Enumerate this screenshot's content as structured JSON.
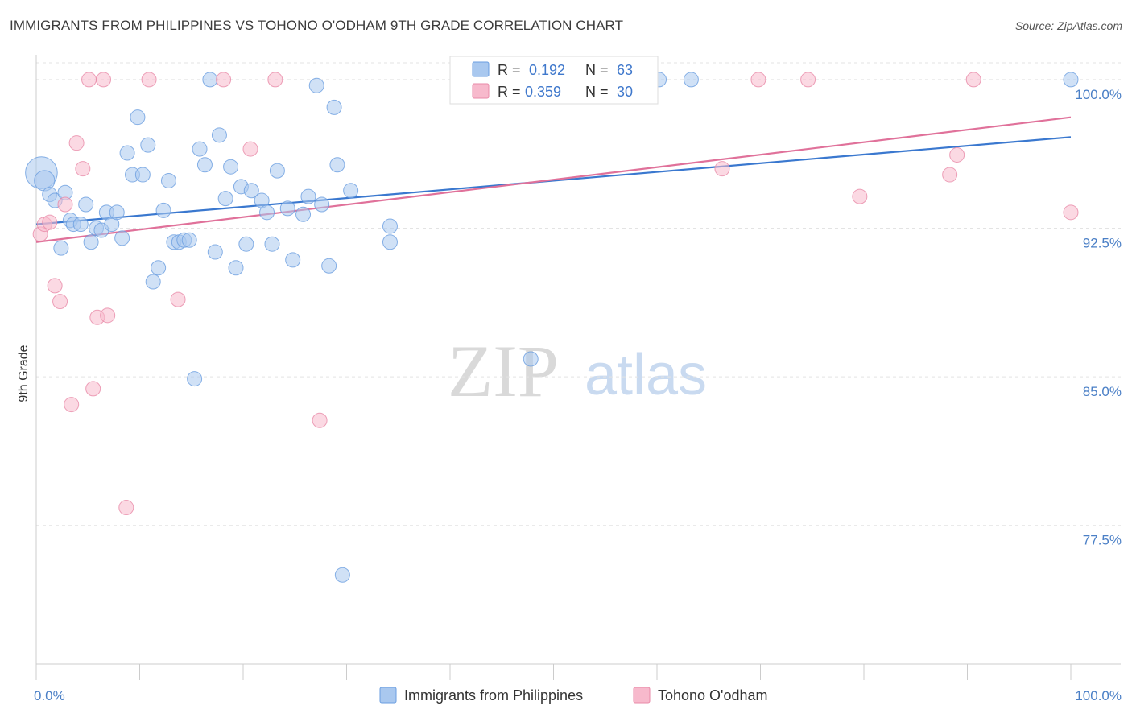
{
  "title": "IMMIGRANTS FROM PHILIPPINES VS TOHONO O'ODHAM 9TH GRADE CORRELATION CHART",
  "source": "Source: ZipAtlas.com",
  "watermark": {
    "zip": "ZIP",
    "atlas": "atlas"
  },
  "legend": {
    "r_label": "R =",
    "n_label": "N =",
    "rows": [
      {
        "r": "0.192",
        "n": "63",
        "color": "#a9c8ef",
        "stroke": "#6a9ee0"
      },
      {
        "r": "0.359",
        "n": "30",
        "color": "#f7b9cc",
        "stroke": "#e98aa8"
      }
    ]
  },
  "bottom_legend": [
    {
      "label": "Immigrants from Philippines",
      "color": "#a9c8ef",
      "stroke": "#6a9ee0"
    },
    {
      "label": "Tohono O'odham",
      "color": "#f7b9cc",
      "stroke": "#e98aa8"
    }
  ],
  "chart_data": {
    "type": "scatter",
    "xlabel": "",
    "ylabel": "9th Grade",
    "xlim": [
      0,
      100
    ],
    "ylim": [
      70.5,
      101.5
    ],
    "x_tick_labels": [
      "0.0%",
      "100.0%"
    ],
    "y_ticks": [
      77.5,
      85.0,
      92.5,
      100.0
    ],
    "y_tick_labels": [
      "77.5%",
      "85.0%",
      "92.5%",
      "100.0%"
    ],
    "grid": true,
    "series": [
      {
        "name": "Immigrants from Philippines",
        "color": "#6a9ee0",
        "fill": "#a9c8ef",
        "trend": {
          "x": [
            0,
            100
          ],
          "y": [
            92.7,
            97.1
          ]
        },
        "points": [
          [
            0.5,
            95.3,
            22
          ],
          [
            0.8,
            94.9,
            14
          ],
          [
            1.3,
            94.2,
            10
          ],
          [
            1.8,
            93.9,
            10
          ],
          [
            2.8,
            94.3,
            10
          ],
          [
            2.4,
            91.5,
            10
          ],
          [
            3.3,
            92.9,
            10
          ],
          [
            3.6,
            92.7,
            10
          ],
          [
            4.3,
            92.7,
            10
          ],
          [
            4.8,
            93.7,
            10
          ],
          [
            5.3,
            91.8,
            10
          ],
          [
            5.8,
            92.5,
            10
          ],
          [
            6.3,
            92.4,
            10
          ],
          [
            6.8,
            93.3,
            10
          ],
          [
            7.3,
            92.7,
            10
          ],
          [
            7.8,
            93.3,
            10
          ],
          [
            8.3,
            92.0,
            10
          ],
          [
            8.8,
            96.3,
            10
          ],
          [
            9.3,
            95.2,
            10
          ],
          [
            9.8,
            98.1,
            10
          ],
          [
            10.3,
            95.2,
            10
          ],
          [
            10.8,
            96.7,
            10
          ],
          [
            11.3,
            89.8,
            10
          ],
          [
            11.8,
            90.5,
            10
          ],
          [
            12.3,
            93.4,
            10
          ],
          [
            12.8,
            94.9,
            10
          ],
          [
            13.3,
            91.8,
            10
          ],
          [
            13.8,
            91.8,
            10
          ],
          [
            14.3,
            91.9,
            10
          ],
          [
            14.8,
            91.9,
            10
          ],
          [
            15.3,
            84.9,
            10
          ],
          [
            15.8,
            96.5,
            10
          ],
          [
            16.3,
            95.7,
            10
          ],
          [
            16.8,
            100.0,
            10
          ],
          [
            17.3,
            91.3,
            10
          ],
          [
            17.7,
            97.2,
            10
          ],
          [
            18.3,
            94.0,
            10
          ],
          [
            18.8,
            95.6,
            10
          ],
          [
            19.3,
            90.5,
            10
          ],
          [
            19.8,
            94.6,
            10
          ],
          [
            20.3,
            91.7,
            10
          ],
          [
            20.8,
            94.4,
            10
          ],
          [
            21.8,
            93.9,
            10
          ],
          [
            22.3,
            93.3,
            10
          ],
          [
            22.8,
            91.7,
            10
          ],
          [
            23.3,
            95.4,
            10
          ],
          [
            24.3,
            93.5,
            10
          ],
          [
            24.8,
            90.9,
            10
          ],
          [
            25.8,
            93.2,
            10
          ],
          [
            26.3,
            94.1,
            10
          ],
          [
            27.1,
            99.7,
            10
          ],
          [
            27.6,
            93.7,
            10
          ],
          [
            28.3,
            90.6,
            10
          ],
          [
            28.8,
            98.6,
            10
          ],
          [
            29.1,
            95.7,
            10
          ],
          [
            30.4,
            94.4,
            10
          ],
          [
            29.6,
            75.0,
            10
          ],
          [
            34.2,
            92.6,
            10
          ],
          [
            34.2,
            91.8,
            10
          ],
          [
            47.8,
            85.9,
            10
          ],
          [
            60.2,
            100.0,
            10
          ],
          [
            63.3,
            100.0,
            10
          ],
          [
            100.0,
            100.0,
            10
          ]
        ]
      },
      {
        "name": "Tohono O'odham",
        "color": "#e98aa8",
        "fill": "#f7b9cc",
        "trend": {
          "x": [
            0,
            100
          ],
          "y": [
            91.8,
            98.1
          ]
        },
        "points": [
          [
            0.4,
            92.2,
            10
          ],
          [
            0.8,
            92.7,
            10
          ],
          [
            1.3,
            92.8,
            10
          ],
          [
            1.8,
            89.6,
            10
          ],
          [
            2.3,
            88.8,
            10
          ],
          [
            2.8,
            93.7,
            10
          ],
          [
            3.4,
            83.6,
            10
          ],
          [
            3.9,
            96.8,
            10
          ],
          [
            4.5,
            95.5,
            10
          ],
          [
            5.1,
            100.0,
            10
          ],
          [
            5.5,
            84.4,
            10
          ],
          [
            5.9,
            88.0,
            10
          ],
          [
            6.5,
            100.0,
            10
          ],
          [
            6.9,
            88.1,
            10
          ],
          [
            8.7,
            78.4,
            10
          ],
          [
            10.9,
            100.0,
            10
          ],
          [
            13.7,
            88.9,
            10
          ],
          [
            18.1,
            100.0,
            10
          ],
          [
            20.7,
            96.5,
            10
          ],
          [
            23.1,
            100.0,
            10
          ],
          [
            27.4,
            82.8,
            10
          ],
          [
            47.3,
            100.0,
            10
          ],
          [
            66.3,
            95.5,
            10
          ],
          [
            69.8,
            100.0,
            10
          ],
          [
            74.6,
            100.0,
            10
          ],
          [
            79.6,
            94.1,
            10
          ],
          [
            88.3,
            95.2,
            10
          ],
          [
            89.0,
            96.2,
            10
          ],
          [
            90.6,
            100.0,
            10
          ],
          [
            100.0,
            93.3,
            10
          ]
        ]
      }
    ]
  }
}
